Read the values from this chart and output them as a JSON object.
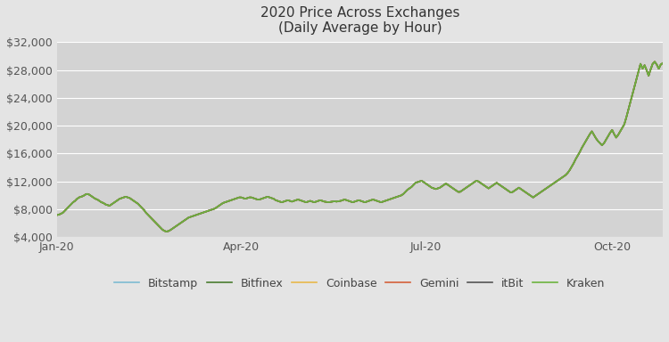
{
  "title_line1": "2020 Price Across Exchanges",
  "title_line2": "(Daily Average by Hour)",
  "outer_bg_color": "#e4e4e4",
  "plot_bg_color": "#d3d3d3",
  "ylim": [
    4000,
    32000
  ],
  "yticks": [
    4000,
    8000,
    12000,
    16000,
    20000,
    24000,
    28000,
    32000
  ],
  "exchanges": [
    "Bitstamp",
    "Bitfinex",
    "Coinbase",
    "Gemini",
    "itBit",
    "Kraken"
  ],
  "colors": {
    "Bitstamp": "#7dbcd2",
    "Bitfinex": "#4a7c2f",
    "Coinbase": "#e8b84b",
    "Gemini": "#d4603a",
    "itBit": "#555555",
    "Kraken": "#6db33f"
  },
  "xtick_labels": [
    "Jan-20",
    "Apr-20",
    "Jul-20",
    "Oct-20"
  ],
  "price_data": [
    7160,
    7220,
    7350,
    7500,
    7800,
    8100,
    8400,
    8700,
    9000,
    9200,
    9500,
    9700,
    9800,
    9900,
    10100,
    10200,
    10100,
    9900,
    9700,
    9500,
    9400,
    9200,
    9000,
    8900,
    8700,
    8600,
    8500,
    8700,
    8900,
    9100,
    9300,
    9500,
    9600,
    9700,
    9800,
    9700,
    9600,
    9400,
    9200,
    9000,
    8800,
    8500,
    8200,
    7900,
    7500,
    7200,
    6900,
    6600,
    6300,
    6000,
    5700,
    5400,
    5100,
    4900,
    4800,
    4850,
    5000,
    5200,
    5400,
    5600,
    5800,
    6000,
    6200,
    6400,
    6600,
    6800,
    6900,
    7000,
    7100,
    7200,
    7300,
    7400,
    7500,
    7600,
    7700,
    7800,
    7900,
    8000,
    8100,
    8300,
    8500,
    8700,
    8900,
    9000,
    9100,
    9200,
    9300,
    9400,
    9500,
    9600,
    9700,
    9700,
    9600,
    9500,
    9600,
    9700,
    9700,
    9600,
    9500,
    9400,
    9400,
    9500,
    9600,
    9700,
    9800,
    9700,
    9600,
    9500,
    9300,
    9200,
    9100,
    9000,
    9100,
    9200,
    9300,
    9200,
    9100,
    9200,
    9300,
    9400,
    9300,
    9200,
    9100,
    9000,
    9100,
    9200,
    9100,
    9000,
    9100,
    9200,
    9300,
    9200,
    9100,
    9050,
    9000,
    9050,
    9100,
    9150,
    9100,
    9150,
    9200,
    9300,
    9400,
    9300,
    9200,
    9100,
    9000,
    9100,
    9200,
    9300,
    9200,
    9100,
    9000,
    9100,
    9200,
    9300,
    9400,
    9300,
    9200,
    9100,
    9000,
    9100,
    9200,
    9300,
    9400,
    9500,
    9600,
    9700,
    9800,
    9900,
    10000,
    10200,
    10500,
    10800,
    11000,
    11200,
    11500,
    11800,
    11900,
    12000,
    12100,
    11900,
    11700,
    11500,
    11300,
    11100,
    11000,
    10900,
    11000,
    11100,
    11300,
    11500,
    11700,
    11500,
    11300,
    11100,
    10900,
    10700,
    10500,
    10500,
    10700,
    10900,
    11100,
    11300,
    11500,
    11700,
    11900,
    12100,
    12000,
    11800,
    11600,
    11400,
    11200,
    11000,
    11200,
    11400,
    11600,
    11800,
    11600,
    11400,
    11200,
    11000,
    10800,
    10600,
    10400,
    10500,
    10700,
    10900,
    11100,
    10900,
    10700,
    10500,
    10300,
    10100,
    9900,
    9700,
    9900,
    10100,
    10300,
    10500,
    10700,
    10900,
    11100,
    11300,
    11500,
    11700,
    11900,
    12100,
    12300,
    12500,
    12700,
    12900,
    13200,
    13600,
    14100,
    14600,
    15200,
    15700,
    16200,
    16800,
    17300,
    17800,
    18300,
    18800,
    19200,
    18700,
    18200,
    17800,
    17500,
    17200,
    17500,
    18000,
    18500,
    19000,
    19400,
    18800,
    18300,
    18700,
    19200,
    19700,
    20200,
    21200,
    22300,
    23400,
    24500,
    25600,
    26700,
    27800,
    28900,
    28200,
    28700,
    28000,
    27200,
    28100,
    28900,
    29200,
    28800,
    28200,
    28800,
    29000
  ]
}
